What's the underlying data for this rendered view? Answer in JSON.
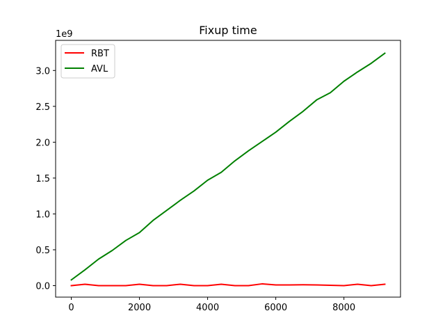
{
  "chart_data": {
    "type": "line",
    "title": "Fixup time",
    "xlabel": "",
    "ylabel": "",
    "y_offset_label": "1e9",
    "xlim": [
      -460,
      9660
    ],
    "ylim": [
      -0.16,
      3.42
    ],
    "x_ticks": [
      0,
      2000,
      4000,
      6000,
      8000
    ],
    "y_ticks": [
      0.0,
      0.5,
      1.0,
      1.5,
      2.0,
      2.5,
      3.0
    ],
    "y_tick_labels": [
      "0.0",
      "0.5",
      "1.0",
      "1.5",
      "2.0",
      "2.5",
      "3.0"
    ],
    "grid": false,
    "legend_position": "upper-left",
    "x": [
      0,
      400,
      800,
      1200,
      1600,
      2000,
      2400,
      2800,
      3200,
      3600,
      4000,
      4400,
      4800,
      5200,
      5600,
      6000,
      6400,
      6800,
      7200,
      7600,
      8000,
      8400,
      8800,
      9200
    ],
    "series": [
      {
        "name": "RBT",
        "color": "#ff0000",
        "values": [
          0.0,
          0.02,
          0.0,
          0.0,
          0.0,
          0.02,
          0.0,
          0.0,
          0.02,
          0.0,
          0.0,
          0.02,
          0.0,
          0.0,
          0.025,
          0.01,
          0.01,
          0.012,
          0.01,
          0.005,
          0.0,
          0.02,
          0.0,
          0.02
        ]
      },
      {
        "name": "AVL",
        "color": "#008000",
        "values": [
          0.08,
          0.22,
          0.37,
          0.49,
          0.63,
          0.74,
          0.91,
          1.05,
          1.19,
          1.32,
          1.47,
          1.58,
          1.74,
          1.88,
          2.01,
          2.14,
          2.29,
          2.43,
          2.59,
          2.69,
          2.85,
          2.98,
          3.1,
          3.24
        ]
      }
    ]
  }
}
